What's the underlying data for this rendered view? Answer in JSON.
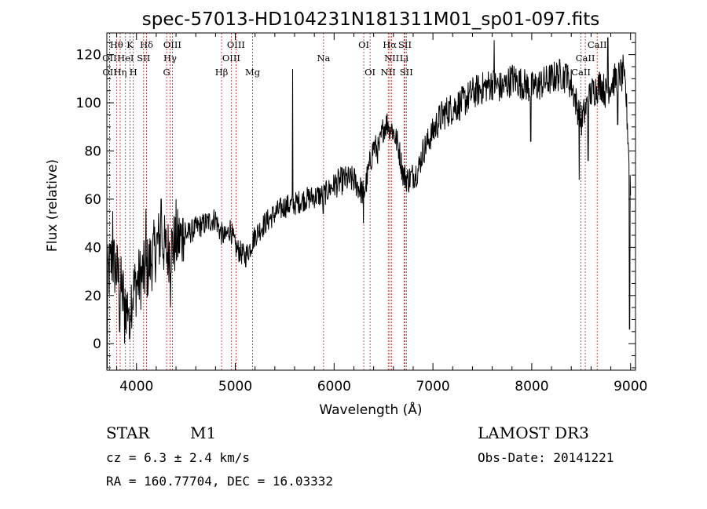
{
  "chart_data": {
    "type": "line",
    "title": "spec-57013-HD104231N181311M01_sp01-097.fits",
    "xlabel": "Wavelength (Å)",
    "ylabel": "Flux (relative)",
    "xlim": [
      3700,
      9050
    ],
    "ylim": [
      -11,
      129
    ],
    "xticks": [
      4000,
      5000,
      6000,
      7000,
      8000,
      9000
    ],
    "yticks": [
      0,
      20,
      40,
      60,
      80,
      100,
      120
    ],
    "line_color": "#000000",
    "marker_color": "#b22222",
    "spectrum_anchors": {
      "wavelength": [
        3700,
        3750,
        3800,
        3850,
        3900,
        3950,
        4000,
        4050,
        4100,
        4150,
        4200,
        4250,
        4300,
        4350,
        4400,
        4450,
        4500,
        4600,
        4700,
        4800,
        4850,
        4900,
        4950,
        5000,
        5050,
        5100,
        5150,
        5200,
        5300,
        5400,
        5500,
        5600,
        5700,
        5800,
        5900,
        6000,
        6100,
        6200,
        6300,
        6350,
        6400,
        6450,
        6500,
        6550,
        6600,
        6650,
        6700,
        6750,
        6800,
        6850,
        6900,
        6950,
        7000,
        7050,
        7100,
        7200,
        7300,
        7400,
        7500,
        7600,
        7700,
        7800,
        7900,
        8000,
        8100,
        8200,
        8300,
        8400,
        8450,
        8500,
        8550,
        8600,
        8650,
        8700,
        8750,
        8800,
        8850,
        8900,
        8950,
        9000
      ],
      "flux": [
        25,
        35,
        30,
        22,
        15,
        20,
        25,
        28,
        30,
        35,
        40,
        45,
        38,
        40,
        42,
        44,
        45,
        48,
        50,
        52,
        46,
        44,
        48,
        40,
        38,
        36,
        40,
        45,
        50,
        54,
        57,
        58,
        60,
        61,
        62,
        66,
        68,
        68,
        62,
        72,
        82,
        80,
        90,
        92,
        88,
        82,
        70,
        68,
        70,
        72,
        80,
        84,
        88,
        92,
        95,
        98,
        100,
        104,
        106,
        108,
        106,
        110,
        108,
        106,
        108,
        110,
        112,
        108,
        100,
        92,
        98,
        104,
        106,
        108,
        104,
        108,
        110,
        112,
        106,
        64
      ]
    },
    "spectrum_spikes": {
      "wavelength": [
        3705,
        3760,
        3830,
        3880,
        3930,
        4095,
        4250,
        4345,
        4400,
        4470,
        5580,
        5890,
        6295,
        6560,
        7620,
        7990,
        8350,
        8480,
        8570,
        8770,
        8870,
        8925,
        8990
      ],
      "flux": [
        -10,
        55,
        5,
        0,
        2,
        56,
        60,
        15,
        60,
        52,
        114,
        54,
        50,
        85,
        126,
        84,
        116,
        68,
        76,
        127,
        91,
        120,
        6
      ]
    },
    "lines_row1": [
      {
        "label": "Hθ",
        "wavelength": 3798
      },
      {
        "label": "K",
        "wavelength": 3934
      },
      {
        "label": "Hδ",
        "wavelength": 4102
      },
      {
        "label": "OIII",
        "wavelength": 4363
      },
      {
        "label": "OIII",
        "wavelength": 5007
      },
      {
        "label": "OI",
        "wavelength": 6300
      },
      {
        "label": "Hα",
        "wavelength": 6563
      },
      {
        "label": "SII",
        "wavelength": 6717
      },
      {
        "label": "CaII",
        "wavelength": 8662
      }
    ],
    "lines_row2": [
      {
        "label": "OII",
        "wavelength": 3727
      },
      {
        "label": "HeI",
        "wavelength": 3889
      },
      {
        "label": "SII",
        "wavelength": 4072
      },
      {
        "label": "Hγ",
        "wavelength": 4340
      },
      {
        "label": "OIII",
        "wavelength": 4959
      },
      {
        "label": "Na",
        "wavelength": 5893
      },
      {
        "label": "NII",
        "wavelength": 6583
      },
      {
        "label": "Li",
        "wavelength": 6708
      },
      {
        "label": "CaII",
        "wavelength": 8542
      }
    ],
    "lines_row3": [
      {
        "label": "OII",
        "wavelength": 3729
      },
      {
        "label": "Hη",
        "wavelength": 3835
      },
      {
        "label": "H",
        "wavelength": 3968
      },
      {
        "label": "G",
        "wavelength": 4305
      },
      {
        "label": "Hβ",
        "wavelength": 4861
      },
      {
        "label": "Mg",
        "wavelength": 5175
      },
      {
        "label": "OI",
        "wavelength": 6364
      },
      {
        "label": "NII",
        "wavelength": 6548
      },
      {
        "label": "SII",
        "wavelength": 6731
      },
      {
        "label": "CaII",
        "wavelength": 8498
      }
    ]
  },
  "info": {
    "class_label": "STAR",
    "subclass": "M1",
    "survey": "LAMOST DR3",
    "cz": "cz = 6.3 ± 2.4 km/s",
    "obs_date": "Obs-Date: 20141221",
    "radec": "RA = 160.77704, DEC =  16.03332"
  }
}
